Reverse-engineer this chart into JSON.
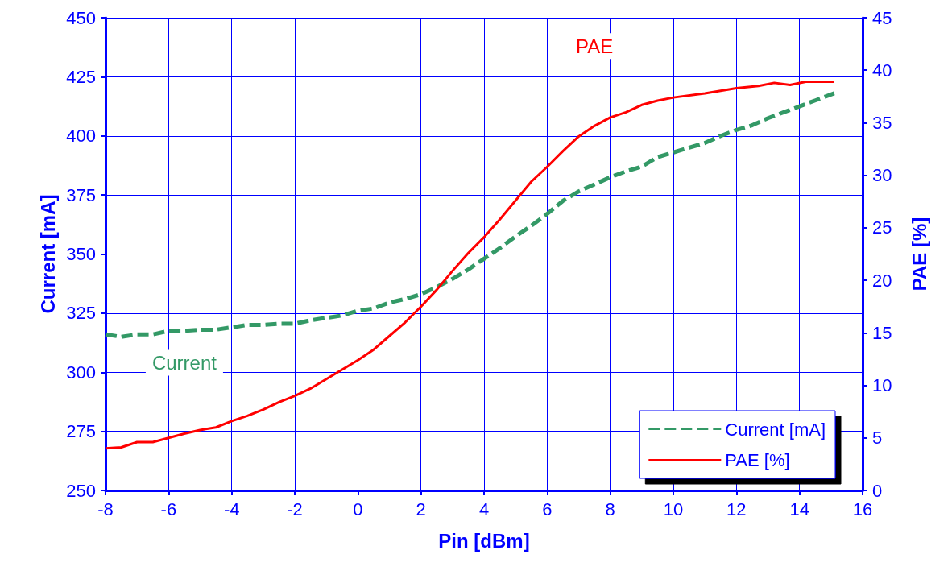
{
  "chart_data": {
    "type": "line",
    "xlabel": "Pin [dBm]",
    "ylabel": "Current [mA]",
    "y2label": "PAE [%]",
    "x": [
      -8,
      -7.5,
      -7,
      -6.5,
      -6,
      -5.5,
      -5,
      -4.5,
      -4,
      -3.5,
      -3,
      -2.5,
      -2,
      -1.5,
      -1,
      -0.5,
      0,
      0.5,
      1,
      1.5,
      2,
      2.5,
      3,
      3.5,
      4,
      4.5,
      5,
      5.5,
      6,
      6.5,
      7,
      7.5,
      8,
      8.5,
      9,
      9.5,
      10,
      10.5,
      11,
      11.5,
      12,
      12.5,
      13,
      13.5,
      14,
      14.5,
      15.1
    ],
    "series": [
      {
        "name": "Current [mA]",
        "color": "#339966",
        "line_style": "dashed",
        "values": [
          316,
          315,
          316,
          316,
          317.5,
          317.5,
          318,
          318,
          319,
          320,
          320,
          320.5,
          320.5,
          322,
          323,
          324,
          326,
          327,
          329.5,
          331,
          333,
          336,
          339.5,
          343.5,
          348,
          352.5,
          357.5,
          362,
          367,
          372.5,
          376.5,
          379.5,
          382.5,
          385,
          387,
          391,
          393,
          395,
          397,
          400,
          402.5,
          404.5,
          407.5,
          410,
          412.5,
          415,
          418
        ]
      },
      {
        "name": "PAE [%]",
        "color": "#ff0000",
        "line_style": "solid",
        "axis": "y2",
        "x": [
          -8,
          -7.5,
          -7,
          -6.5,
          -6,
          -5.5,
          -5,
          -4.5,
          -4,
          -3.5,
          -3,
          -2.5,
          -2,
          -1.5,
          -1,
          -0.5,
          0,
          0.5,
          1,
          1.5,
          2,
          2.5,
          3,
          3.5,
          4,
          4.5,
          5,
          5.5,
          6,
          6.5,
          7,
          7.5,
          8,
          8.5,
          9,
          9.5,
          10,
          11,
          12,
          12.7,
          13.2,
          13.7,
          14.2,
          15.1
        ],
        "values": [
          4.0,
          4.1,
          4.6,
          4.6,
          5.0,
          5.4,
          5.75,
          6.0,
          6.6,
          7.1,
          7.7,
          8.4,
          9.0,
          9.7,
          10.6,
          11.5,
          12.4,
          13.4,
          14.7,
          16.0,
          17.5,
          19.1,
          20.9,
          22.6,
          24.1,
          25.8,
          27.6,
          29.4,
          30.8,
          32.3,
          33.7,
          34.7,
          35.5,
          36.0,
          36.7,
          37.1,
          37.4,
          37.8,
          38.3,
          38.5,
          38.8,
          38.6,
          38.9,
          38.9
        ]
      }
    ],
    "xlim": [
      -8,
      16
    ],
    "xticks": [
      -8,
      -6,
      -4,
      -2,
      0,
      2,
      4,
      6,
      8,
      10,
      12,
      14,
      16
    ],
    "ylim": [
      250,
      450
    ],
    "yticks": [
      250,
      275,
      300,
      325,
      350,
      375,
      400,
      425,
      450
    ],
    "y2lim": [
      0,
      45
    ],
    "y2ticks": [
      0,
      5,
      10,
      15,
      20,
      25,
      30,
      35,
      40,
      45
    ],
    "grid": true,
    "legend": "bottom right",
    "marker": "none",
    "annotations": [
      "Current",
      "PAE"
    ]
  }
}
